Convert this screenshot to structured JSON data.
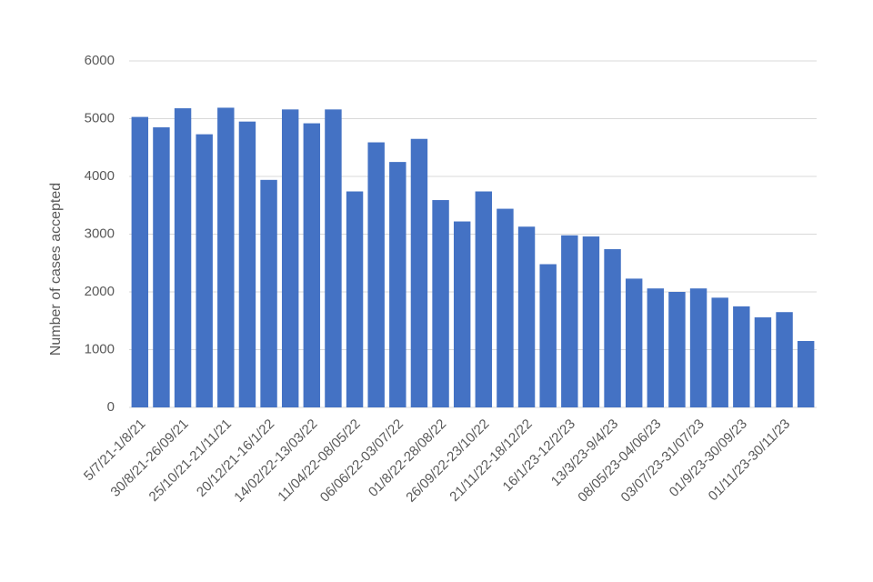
{
  "chart_data": {
    "type": "bar",
    "y_label": "Number of cases accepted",
    "categories": [
      "5/7/21-1/8/21",
      null,
      "30/8/21-26/09/21",
      null,
      "25/10/21-21/11/21",
      null,
      "20/12/21-16/1/22",
      null,
      "14/02/22-13/03/22",
      null,
      "11/04/22-08/05/22",
      null,
      "06/06/22-03/07/22",
      null,
      "01/8/22-28/08/22",
      null,
      "26/09/22-23/10/22",
      null,
      "21/11/22-18/12/22",
      null,
      "16/1/23-12/2/23",
      null,
      "13/3/23-9/4/23",
      null,
      "08/05/23-04/06/23",
      null,
      "03/07/23-31/07/23",
      null,
      "01/9/23-30/09/23",
      null,
      "01/11/23-30/11/23",
      null
    ],
    "values": [
      5030,
      4850,
      5180,
      4730,
      5190,
      4950,
      3940,
      5160,
      4920,
      5160,
      3740,
      4590,
      4250,
      4650,
      3590,
      3220,
      3740,
      3440,
      3130,
      2480,
      2980,
      2960,
      2740,
      2230,
      2060,
      2000,
      2060,
      1900,
      1750,
      1560,
      1650,
      1150
    ],
    "color": "#4472c4",
    "ylim": [
      0,
      6000
    ],
    "yticks": [
      0,
      1000,
      2000,
      3000,
      4000,
      5000,
      6000
    ],
    "grid": true
  }
}
